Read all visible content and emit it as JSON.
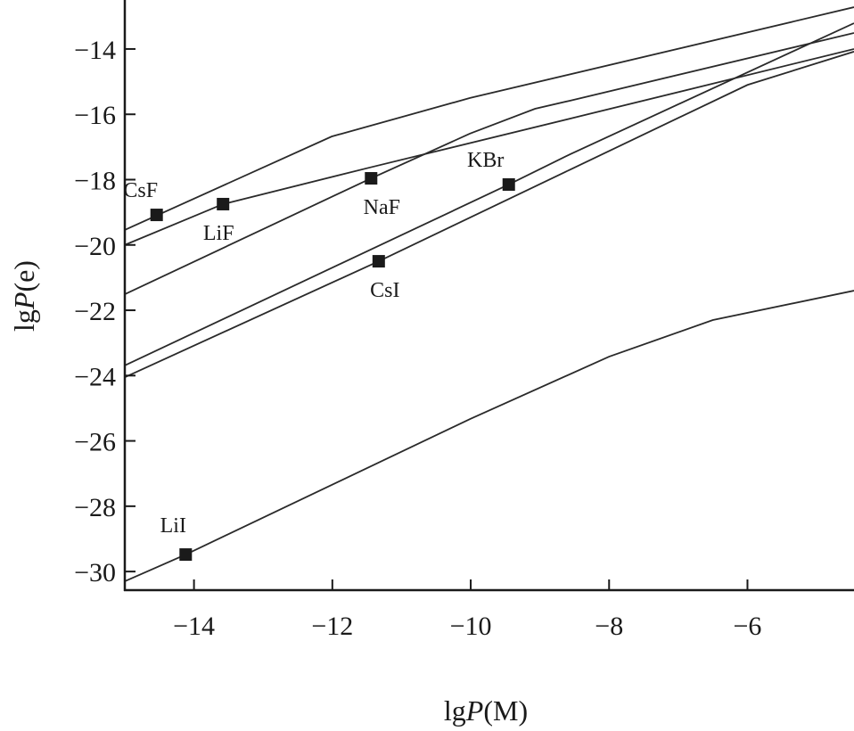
{
  "chart_data": {
    "type": "line",
    "title": "",
    "xlabel": {
      "prefix": "lg",
      "var": "P",
      "suffix": "(M)"
    },
    "ylabel": {
      "prefix": "lg",
      "var": "P",
      "suffix": "(e)"
    },
    "xlim": [
      -15,
      -4.46
    ],
    "ylim": [
      -30.57,
      -12.5
    ],
    "xticks": [
      -14,
      -12,
      -10,
      -8,
      -6
    ],
    "yticks": [
      -14,
      -16,
      -18,
      -20,
      -22,
      -24,
      -26,
      -28,
      -30
    ],
    "grid": false,
    "series": [
      {
        "name": "CsF",
        "points": [
          [
            -15,
            -19.54
          ],
          [
            -12.01,
            -16.68
          ],
          [
            -10.01,
            -15.5
          ],
          [
            -4.46,
            -12.72
          ]
        ],
        "marker": [
          -14.54,
          -19.08
        ]
      },
      {
        "name": "LiF",
        "points": [
          [
            -15,
            -20.0
          ],
          [
            -13.58,
            -18.75
          ],
          [
            -11.46,
            -17.63
          ],
          [
            -8.56,
            -16.13
          ],
          [
            -4.46,
            -14.0
          ]
        ],
        "marker": [
          -13.58,
          -18.75
        ]
      },
      {
        "name": "NaF",
        "points": [
          [
            -15,
            -21.51
          ],
          [
            -11.44,
            -17.96
          ],
          [
            -10.01,
            -16.59
          ],
          [
            -9.07,
            -15.83
          ],
          [
            -8.56,
            -15.58
          ],
          [
            -4.46,
            -13.51
          ]
        ],
        "marker": [
          -11.44,
          -17.96
        ]
      },
      {
        "name": "KBr",
        "points": [
          [
            -15,
            -23.69
          ],
          [
            -9.45,
            -18.15
          ],
          [
            -8.56,
            -17.22
          ],
          [
            -4.46,
            -13.21
          ]
        ],
        "marker": [
          -9.45,
          -18.15
        ]
      },
      {
        "name": "CsI",
        "points": [
          [
            -15,
            -24.05
          ],
          [
            -11.33,
            -20.5
          ],
          [
            -8.56,
            -17.69
          ],
          [
            -6.0,
            -15.1
          ],
          [
            -4.46,
            -14.08
          ]
        ],
        "marker": [
          -11.33,
          -20.5
        ]
      },
      {
        "name": "LiI",
        "points": [
          [
            -15,
            -30.3
          ],
          [
            -14.12,
            -29.48
          ],
          [
            -10.01,
            -25.33
          ],
          [
            -8.0,
            -23.42
          ],
          [
            -6.5,
            -22.3
          ],
          [
            -4.46,
            -21.4
          ]
        ],
        "marker": [
          -14.12,
          -29.48
        ]
      }
    ]
  }
}
